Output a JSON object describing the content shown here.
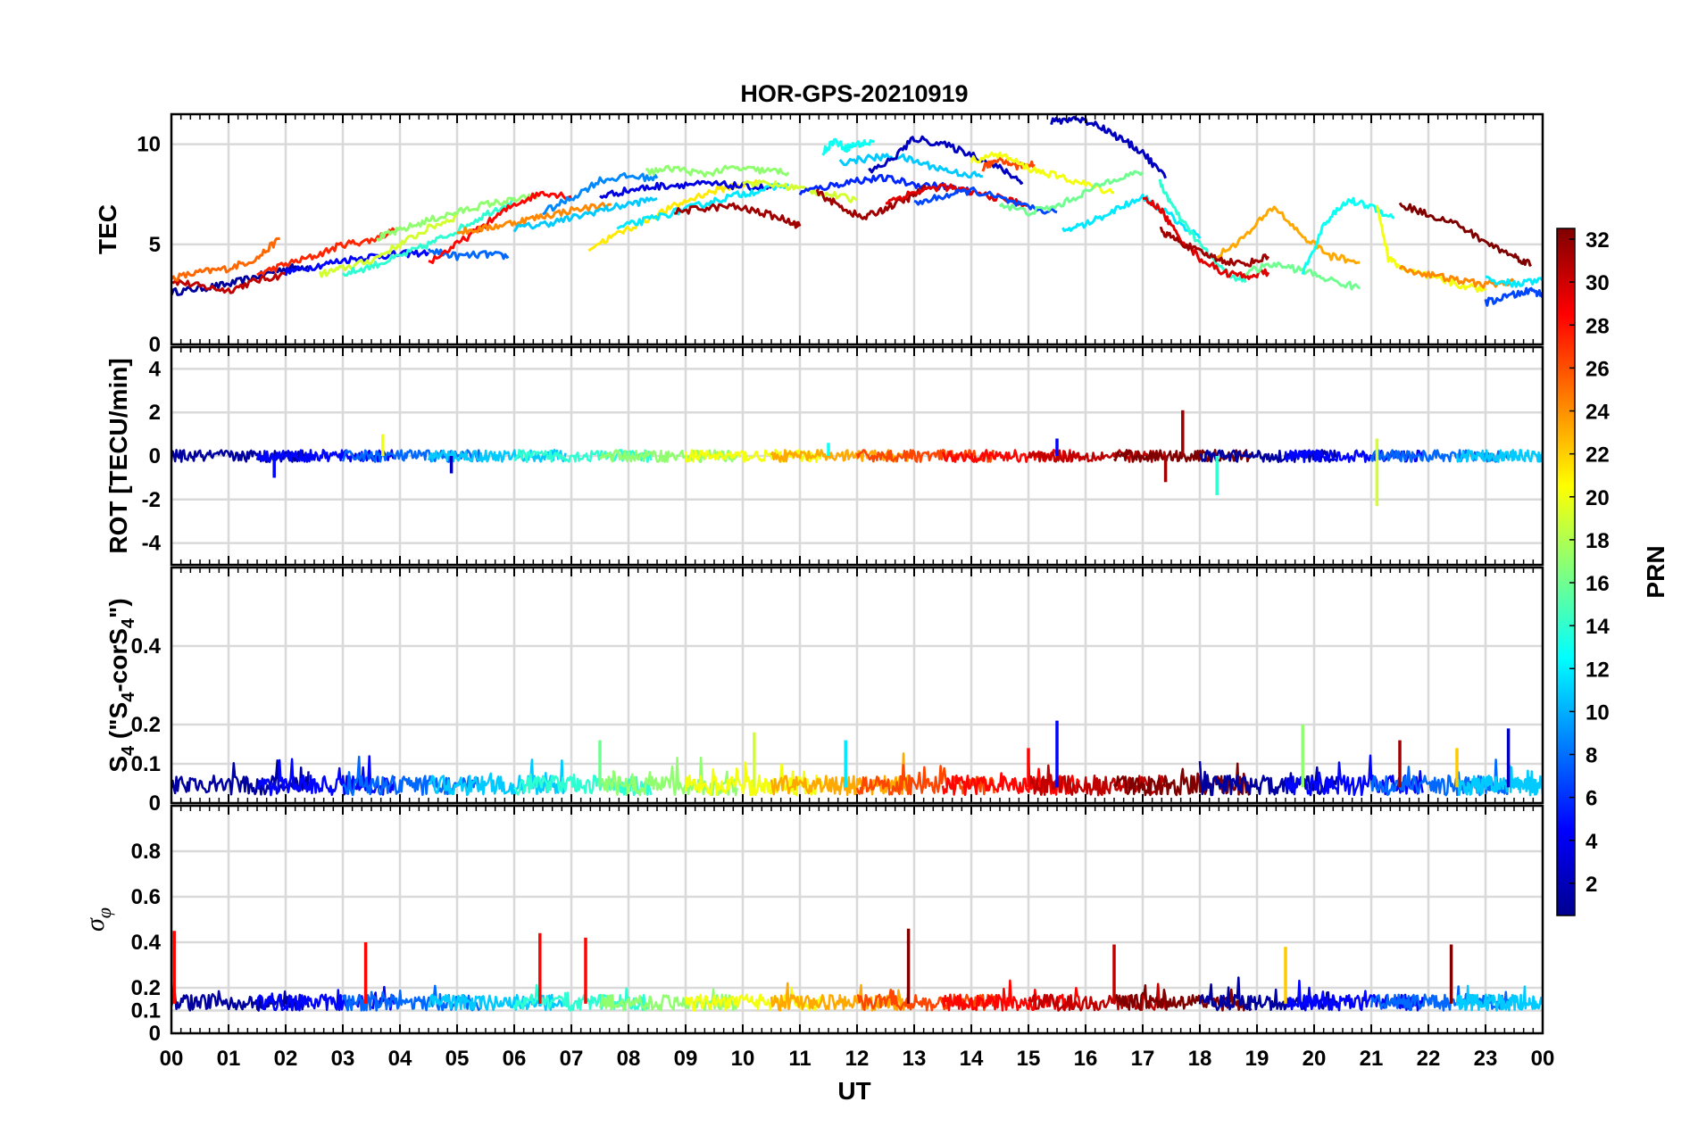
{
  "chart_data": {
    "title": "HOR-GPS-20210919",
    "xlabel": "UT",
    "x_ticks": [
      "00",
      "01",
      "02",
      "03",
      "04",
      "05",
      "06",
      "07",
      "08",
      "09",
      "10",
      "11",
      "12",
      "13",
      "14",
      "15",
      "16",
      "17",
      "18",
      "19",
      "20",
      "21",
      "22",
      "23",
      "00"
    ],
    "xlim": [
      0,
      24
    ],
    "grid": true,
    "colorbar": {
      "label": "PRN",
      "range": [
        1,
        32
      ],
      "ticks": [
        "2",
        "4",
        "6",
        "8",
        "10",
        "12",
        "14",
        "16",
        "18",
        "20",
        "22",
        "24",
        "26",
        "28",
        "30",
        "32"
      ],
      "colormap": "jet",
      "placement": "right"
    },
    "panels": [
      {
        "type": "line",
        "ylabel": "TEC",
        "ylim": [
          0,
          11.5
        ],
        "yticks": [
          "0",
          "5",
          "10"
        ],
        "series": [
          {
            "prn": 2,
            "x": [
              0,
              0.5,
              1.0,
              1.5,
              2.0,
              2.4
            ],
            "y": [
              2.6,
              2.8,
              3.0,
              3.4,
              3.8,
              3.9
            ]
          },
          {
            "prn": 30,
            "x": [
              0,
              0.5,
              1.0,
              1.5,
              2.0
            ],
            "y": [
              3.2,
              2.9,
              2.7,
              3.2,
              3.5
            ]
          },
          {
            "prn": 25,
            "x": [
              0,
              0.5,
              1.0,
              1.5,
              1.9
            ],
            "y": [
              3.3,
              3.6,
              3.8,
              4.3,
              5.3
            ]
          },
          {
            "prn": 27,
            "x": [
              1.5,
              2.0,
              2.5,
              3.0,
              3.5,
              3.9
            ],
            "y": [
              3.5,
              4.0,
              4.4,
              5.0,
              5.2,
              5.7
            ]
          },
          {
            "prn": 5,
            "x": [
              2.0,
              2.5,
              3.0,
              3.5,
              4.0,
              4.5
            ],
            "y": [
              3.6,
              3.9,
              4.2,
              4.4,
              4.5,
              4.6
            ]
          },
          {
            "prn": 19,
            "x": [
              2.6,
              3.0,
              3.5,
              4.0,
              4.5,
              5.0
            ],
            "y": [
              3.5,
              3.8,
              4.2,
              5.0,
              5.8,
              6.4
            ]
          },
          {
            "prn": 14,
            "x": [
              3.0,
              3.5,
              4.0,
              4.5,
              5.0,
              5.5,
              6.0
            ],
            "y": [
              3.5,
              3.9,
              4.4,
              5.0,
              5.7,
              6.5,
              7.2
            ]
          },
          {
            "prn": 17,
            "x": [
              3.6,
              4.0,
              4.5,
              5.0,
              5.5,
              6.0,
              6.4
            ],
            "y": [
              5.3,
              5.7,
              6.2,
              6.6,
              7.0,
              7.2,
              7.4
            ]
          },
          {
            "prn": 8,
            "x": [
              4.5,
              5.0,
              5.5,
              5.9
            ],
            "y": [
              4.7,
              4.4,
              4.5,
              4.4
            ]
          },
          {
            "prn": 28,
            "x": [
              4.5,
              5.0,
              5.5,
              6.0,
              6.5,
              7.0
            ],
            "y": [
              4.1,
              5.0,
              6.0,
              7.0,
              7.6,
              7.4
            ]
          },
          {
            "prn": 24,
            "x": [
              5.0,
              5.5,
              6.0,
              6.5,
              7.0,
              7.7
            ],
            "y": [
              5.6,
              5.8,
              6.1,
              6.4,
              6.7,
              7.0
            ]
          },
          {
            "prn": 11,
            "x": [
              6.0,
              6.5,
              7.0,
              7.5,
              8.0,
              8.5
            ],
            "y": [
              5.8,
              6.0,
              6.3,
              6.7,
              7.0,
              7.3
            ]
          },
          {
            "prn": 9,
            "x": [
              6.5,
              7.0,
              7.5,
              8.0,
              8.5
            ],
            "y": [
              6.6,
              7.3,
              8.2,
              8.4,
              8.3
            ]
          },
          {
            "prn": 21,
            "x": [
              7.3,
              7.8,
              8.3,
              8.8,
              9.3,
              9.8,
              10.3
            ],
            "y": [
              4.8,
              5.5,
              6.2,
              6.9,
              7.5,
              7.9,
              8.1
            ]
          },
          {
            "prn": 4,
            "x": [
              7.5,
              8.0,
              8.5,
              9.0,
              9.5,
              10.0,
              10.5
            ],
            "y": [
              7.4,
              7.7,
              7.9,
              8.0,
              8.0,
              7.9,
              7.8
            ]
          },
          {
            "prn": 12,
            "x": [
              7.8,
              8.3,
              8.8,
              9.3,
              9.8,
              10.3,
              10.8
            ],
            "y": [
              5.8,
              6.2,
              6.6,
              7.0,
              7.4,
              7.7,
              8.0
            ]
          },
          {
            "prn": 17,
            "x": [
              8.3,
              8.8,
              9.3,
              9.8,
              10.3,
              10.8
            ],
            "y": [
              8.6,
              8.8,
              8.5,
              8.8,
              8.7,
              8.6
            ]
          },
          {
            "prn": 31,
            "x": [
              8.8,
              9.3,
              9.8,
              10.3,
              10.8,
              11.0
            ],
            "y": [
              6.6,
              6.8,
              6.9,
              6.6,
              6.2,
              5.9
            ]
          },
          {
            "prn": 19,
            "x": [
              10.0,
              10.5,
              11.0,
              11.5,
              12.0
            ],
            "y": [
              8.1,
              8.0,
              7.8,
              7.5,
              7.2
            ]
          },
          {
            "prn": 13,
            "x": [
              11.4,
              11.6,
              11.8,
              12.0,
              12.3
            ],
            "y": [
              9.6,
              10.2,
              9.8,
              10.0,
              10.1
            ]
          },
          {
            "prn": 6,
            "x": [
              11.0,
              11.5,
              12.0,
              12.5,
              13.0,
              13.5,
              14.0
            ],
            "y": [
              7.6,
              7.9,
              8.2,
              8.3,
              8.0,
              7.9,
              7.6
            ]
          },
          {
            "prn": 31,
            "x": [
              11.3,
              11.7,
              12.1,
              12.5,
              12.9,
              13.2
            ],
            "y": [
              7.6,
              6.9,
              6.3,
              6.8,
              7.3,
              7.8
            ]
          },
          {
            "prn": 11,
            "x": [
              11.7,
              12.2,
              12.7,
              13.2,
              13.7,
              14.2
            ],
            "y": [
              9.1,
              9.3,
              9.4,
              9.0,
              8.6,
              8.4
            ]
          },
          {
            "prn": 3,
            "x": [
              12.2,
              12.6,
              13.0,
              13.5,
              14.0,
              14.5,
              14.9
            ],
            "y": [
              8.6,
              9.2,
              10.3,
              10.0,
              9.5,
              8.8,
              8.1
            ]
          },
          {
            "prn": 29,
            "x": [
              12.5,
              13.0,
              13.5,
              14.0,
              14.5,
              15.0
            ],
            "y": [
              7.1,
              7.6,
              7.9,
              7.6,
              7.3,
              7.0
            ]
          },
          {
            "prn": 7,
            "x": [
              13.0,
              13.5,
              14.0,
              14.5,
              15.0,
              15.5
            ],
            "y": [
              7.0,
              7.4,
              7.7,
              7.3,
              6.8,
              6.6
            ]
          },
          {
            "prn": 26,
            "x": [
              14.2,
              14.5,
              14.8,
              15.1
            ],
            "y": [
              8.8,
              9.3,
              8.9,
              9.0
            ]
          },
          {
            "prn": 20,
            "x": [
              14.0,
              14.5,
              15.0,
              15.5,
              16.0,
              16.5
            ],
            "y": [
              9.2,
              9.5,
              8.8,
              8.4,
              8.0,
              7.6
            ]
          },
          {
            "prn": 16,
            "x": [
              14.5,
              15.0,
              15.5,
              16.0,
              16.5,
              17.0
            ],
            "y": [
              7.0,
              6.6,
              6.9,
              7.6,
              8.3,
              8.6
            ]
          },
          {
            "prn": 3,
            "x": [
              15.4,
              15.8,
              16.2,
              16.6,
              17.0,
              17.4
            ],
            "y": [
              11.1,
              11.3,
              11.0,
              10.3,
              9.6,
              8.3
            ]
          },
          {
            "prn": 12,
            "x": [
              15.6,
              16.0,
              16.5,
              17.0,
              17.5,
              18.0
            ],
            "y": [
              5.7,
              6.0,
              6.7,
              7.4,
              6.4,
              5.3
            ]
          },
          {
            "prn": 14,
            "x": [
              17.3,
              17.6,
              18.0,
              18.4,
              18.8
            ],
            "y": [
              8.1,
              6.5,
              5.0,
              3.7,
              3.1
            ]
          },
          {
            "prn": 29,
            "x": [
              17.0,
              17.3,
              17.6,
              18.0,
              18.4,
              18.8,
              19.2
            ],
            "y": [
              7.3,
              6.8,
              5.5,
              4.3,
              3.6,
              3.4,
              3.6
            ]
          },
          {
            "prn": 31,
            "x": [
              17.3,
              17.6,
              18.0,
              18.4,
              18.8,
              19.2
            ],
            "y": [
              5.7,
              5.2,
              4.6,
              4.2,
              4.0,
              4.4
            ]
          },
          {
            "prn": 23,
            "x": [
              18.3,
              18.8,
              19.3,
              19.8,
              20.3,
              20.8
            ],
            "y": [
              4.4,
              5.4,
              6.9,
              5.4,
              4.4,
              4.1
            ]
          },
          {
            "prn": 16,
            "x": [
              18.8,
              19.3,
              19.8,
              20.3,
              20.8
            ],
            "y": [
              3.6,
              4.0,
              3.7,
              3.2,
              2.8
            ]
          },
          {
            "prn": 13,
            "x": [
              19.8,
              20.2,
              20.6,
              21.0,
              21.4
            ],
            "y": [
              3.6,
              6.1,
              7.2,
              6.9,
              6.3
            ]
          },
          {
            "prn": 20,
            "x": [
              21.1,
              21.3,
              21.6,
              22.0,
              22.5,
              23.0
            ],
            "y": [
              7.0,
              4.3,
              3.7,
              3.4,
              3.0,
              2.7
            ]
          },
          {
            "prn": 32,
            "x": [
              21.5,
              22.0,
              22.5,
              23.0,
              23.5,
              23.8
            ],
            "y": [
              7.0,
              6.5,
              6.0,
              5.1,
              4.4,
              4.0
            ]
          },
          {
            "prn": 24,
            "x": [
              21.5,
              22.0,
              22.5,
              23.0,
              23.5
            ],
            "y": [
              3.8,
              3.5,
              3.2,
              3.0,
              3.1
            ]
          },
          {
            "prn": 7,
            "x": [
              23.0,
              23.4,
              23.8,
              24.0
            ],
            "y": [
              2.1,
              2.4,
              2.7,
              2.5
            ]
          },
          {
            "prn": 12,
            "x": [
              23.0,
              23.5,
              24.0
            ],
            "y": [
              3.3,
              3.0,
              3.2
            ]
          }
        ]
      },
      {
        "type": "line",
        "ylabel": "ROT [TECU/min]",
        "ylim": [
          -5,
          5
        ],
        "yticks": [
          "-4",
          "-2",
          "0",
          "2",
          "4"
        ],
        "spikes": [
          {
            "prn": 20,
            "x": 3.7,
            "y": 1.0
          },
          {
            "prn": 5,
            "x": 1.8,
            "y": -1.0
          },
          {
            "prn": 3,
            "x": 4.9,
            "y": -0.8
          },
          {
            "prn": 13,
            "x": 11.5,
            "y": 0.6
          },
          {
            "prn": 5,
            "x": 15.5,
            "y": 0.8
          },
          {
            "prn": 31,
            "x": 17.7,
            "y": 2.1
          },
          {
            "prn": 31,
            "x": 17.4,
            "y": -1.2
          },
          {
            "prn": 14,
            "x": 18.3,
            "y": -1.8
          },
          {
            "prn": 19,
            "x": 21.1,
            "y": -2.3
          },
          {
            "prn": 19,
            "x": 21.1,
            "y": 0.8
          }
        ]
      },
      {
        "type": "line",
        "ylabel": "S4 (\"S4-corS4\")",
        "ylim": [
          0,
          0.6
        ],
        "yticks": [
          "0",
          "0.1",
          "0.2",
          "0.4"
        ],
        "spikes": [
          {
            "prn": 5,
            "x": 15.5,
            "y": 0.21
          },
          {
            "prn": 17,
            "x": 19.8,
            "y": 0.2
          },
          {
            "prn": 3,
            "x": 23.4,
            "y": 0.19
          },
          {
            "prn": 16,
            "x": 7.5,
            "y": 0.16
          },
          {
            "prn": 19,
            "x": 10.2,
            "y": 0.18
          },
          {
            "prn": 12,
            "x": 11.8,
            "y": 0.16
          },
          {
            "prn": 28,
            "x": 15.0,
            "y": 0.14
          },
          {
            "prn": 31,
            "x": 21.5,
            "y": 0.16
          },
          {
            "prn": 22,
            "x": 22.5,
            "y": 0.14
          }
        ]
      },
      {
        "type": "line",
        "ylabel": "σφ",
        "ylim": [
          0,
          1.0
        ],
        "yticks": [
          "0",
          "0.1",
          "0.2",
          "0.4",
          "0.6",
          "0.8"
        ],
        "spikes": [
          {
            "prn": 28,
            "x": 3.4,
            "y": 0.4
          },
          {
            "prn": 28,
            "x": 6.45,
            "y": 0.44
          },
          {
            "prn": 28,
            "x": 7.25,
            "y": 0.42
          },
          {
            "prn": 32,
            "x": 12.9,
            "y": 0.46
          },
          {
            "prn": 30,
            "x": 16.5,
            "y": 0.39
          },
          {
            "prn": 22,
            "x": 19.5,
            "y": 0.38
          },
          {
            "prn": 32,
            "x": 22.4,
            "y": 0.39
          },
          {
            "prn": 28,
            "x": 0.05,
            "y": 0.45
          }
        ]
      }
    ]
  }
}
